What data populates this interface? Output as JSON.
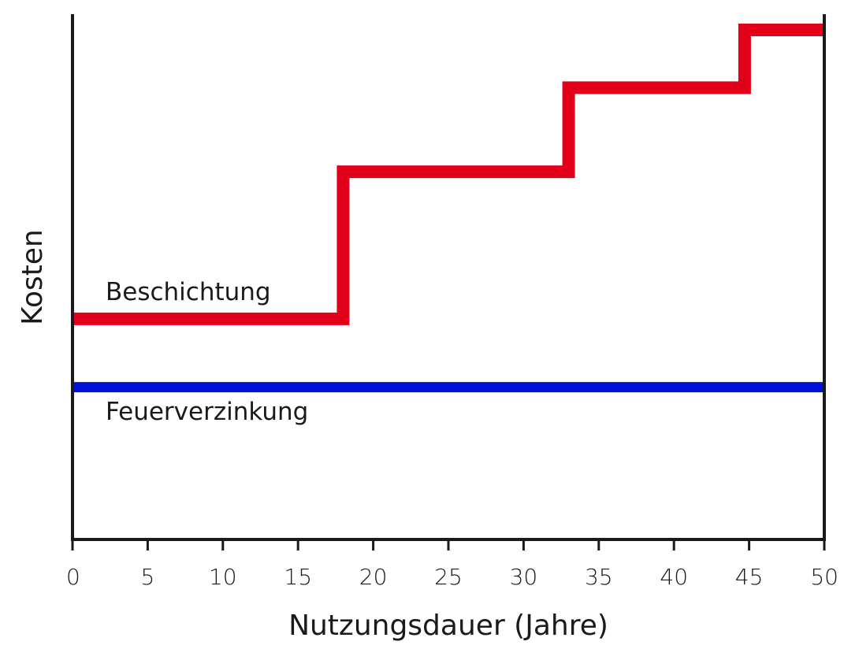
{
  "chart_data": {
    "type": "line",
    "xlabel": "Nutzungsdauer (Jahre)",
    "ylabel": "Kosten",
    "xlim": [
      0,
      50
    ],
    "ylim": [
      0,
      100
    ],
    "x_ticks": [
      "0",
      "5",
      "10",
      "15",
      "20",
      "25",
      "30",
      "35",
      "40",
      "45",
      "50"
    ],
    "y_ticks_shown": false,
    "grid": false,
    "legend": "inline labels",
    "series": [
      {
        "name": "Beschichtung",
        "color": "#e2001a",
        "step": true,
        "points": [
          [
            0,
            42
          ],
          [
            18,
            42
          ],
          [
            18,
            70
          ],
          [
            33,
            70
          ],
          [
            33,
            86
          ],
          [
            44.7,
            86
          ],
          [
            44.7,
            97
          ],
          [
            50,
            97
          ]
        ]
      },
      {
        "name": "Feuerverzinkung",
        "color": "#0012d8",
        "step": false,
        "points": [
          [
            0,
            29
          ],
          [
            50,
            29
          ]
        ]
      }
    ]
  }
}
